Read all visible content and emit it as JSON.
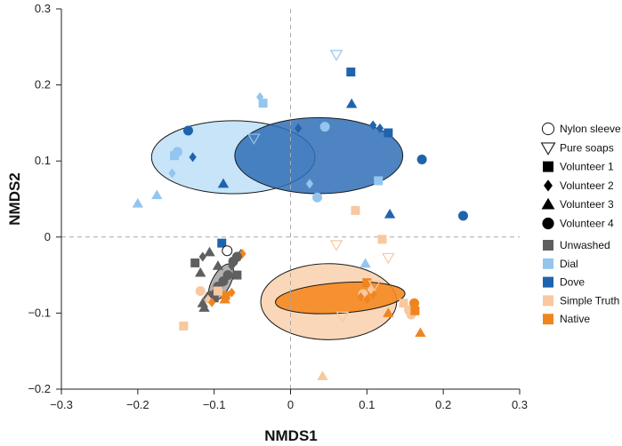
{
  "chart_data": {
    "type": "scatter",
    "xlabel": "NMDS1",
    "ylabel": "NMDS2",
    "xlim": [
      -0.3,
      0.3
    ],
    "ylim": [
      -0.2,
      0.3
    ],
    "x_ticks": [
      "−0.3",
      "−0.2",
      "−0.1",
      "0",
      "0.1",
      "0.2",
      "0.3"
    ],
    "y_ticks": [
      "−0.2",
      "−0.1",
      "0",
      "0.1",
      "0.2",
      "0.3"
    ],
    "x_tick_values": [
      -0.3,
      -0.2,
      -0.1,
      0,
      0.1,
      0.2,
      0.3
    ],
    "y_tick_values": [
      -0.2,
      -0.1,
      0,
      0.1,
      0.2,
      0.3
    ],
    "reference_lines": {
      "x": 0,
      "y": 0,
      "style": "dashed"
    },
    "grid": false,
    "legend_position": "right",
    "shape_legend": [
      {
        "label": "Nylon sleeve",
        "shape": "circle-open"
      },
      {
        "label": "Pure soaps",
        "shape": "triangle-down-open"
      },
      {
        "label": "Volunteer 1",
        "shape": "square"
      },
      {
        "label": "Volunteer 2",
        "shape": "diamond"
      },
      {
        "label": "Volunteer 3",
        "shape": "triangle"
      },
      {
        "label": "Volunteer 4",
        "shape": "circle"
      }
    ],
    "color_legend": [
      {
        "label": "Unwashed",
        "color": "#5f5f5f"
      },
      {
        "label": "Dial",
        "color": "#93c5ef"
      },
      {
        "label": "Dove",
        "color": "#1f63ad"
      },
      {
        "label": "Simple Truth",
        "color": "#f8c8a0"
      },
      {
        "label": "Native",
        "color": "#f08520"
      }
    ],
    "ellipses": [
      {
        "group": "Dial",
        "cx": -0.075,
        "cy": 0.105,
        "rx": 0.107,
        "ry": 0.048,
        "angle": 0,
        "fill": "#bddff8",
        "opacity": 0.85
      },
      {
        "group": "Dove",
        "cx": 0.037,
        "cy": 0.107,
        "rx": 0.11,
        "ry": 0.05,
        "angle": 0,
        "fill": "#2f6fb6",
        "opacity": 0.85
      },
      {
        "group": "Simple Truth",
        "cx": 0.05,
        "cy": -0.085,
        "rx": 0.089,
        "ry": 0.05,
        "angle": 0,
        "fill": "#f8d0ac",
        "opacity": 0.85
      },
      {
        "group": "Native",
        "cx": 0.065,
        "cy": -0.08,
        "rx": 0.085,
        "ry": 0.02,
        "angle": -4,
        "fill": "#f48a22",
        "opacity": 0.9
      },
      {
        "group": "Unwashed",
        "cx": -0.091,
        "cy": -0.06,
        "rx": 0.012,
        "ry": 0.027,
        "angle": 28,
        "fill": "#a8a8a8",
        "opacity": 0.9
      }
    ],
    "points": [
      {
        "x": 0.06,
        "y": 0.24,
        "group": "Dial",
        "shape": "triangle-down-open"
      },
      {
        "x": 0.079,
        "y": 0.217,
        "group": "Dove",
        "shape": "square"
      },
      {
        "x": -0.036,
        "y": 0.176,
        "group": "Dial",
        "shape": "square"
      },
      {
        "x": -0.04,
        "y": 0.184,
        "group": "Dial",
        "shape": "diamond"
      },
      {
        "x": 0.08,
        "y": 0.175,
        "group": "Dove",
        "shape": "triangle"
      },
      {
        "x": -0.134,
        "y": 0.14,
        "group": "Dove",
        "shape": "circle"
      },
      {
        "x": -0.048,
        "y": 0.13,
        "group": "Dial",
        "shape": "triangle-down-open"
      },
      {
        "x": 0.045,
        "y": 0.145,
        "group": "Dial",
        "shape": "circle"
      },
      {
        "x": 0.108,
        "y": 0.147,
        "group": "Dove",
        "shape": "diamond"
      },
      {
        "x": 0.128,
        "y": 0.137,
        "group": "Dove",
        "shape": "square"
      },
      {
        "x": 0.117,
        "y": 0.143,
        "group": "Dove",
        "shape": "diamond"
      },
      {
        "x": 0.01,
        "y": 0.143,
        "group": "Dove",
        "shape": "diamond"
      },
      {
        "x": -0.148,
        "y": 0.112,
        "group": "Dial",
        "shape": "circle"
      },
      {
        "x": -0.152,
        "y": 0.107,
        "group": "Dial",
        "shape": "square"
      },
      {
        "x": -0.128,
        "y": 0.105,
        "group": "Dove",
        "shape": "diamond"
      },
      {
        "x": -0.175,
        "y": 0.055,
        "group": "Dial",
        "shape": "triangle"
      },
      {
        "x": -0.155,
        "y": 0.084,
        "group": "Dial",
        "shape": "diamond"
      },
      {
        "x": -0.2,
        "y": 0.044,
        "group": "Dial",
        "shape": "triangle"
      },
      {
        "x": -0.088,
        "y": 0.07,
        "group": "Dove",
        "shape": "triangle"
      },
      {
        "x": 0.025,
        "y": 0.07,
        "group": "Dial",
        "shape": "diamond"
      },
      {
        "x": 0.035,
        "y": 0.052,
        "group": "Dial",
        "shape": "circle"
      },
      {
        "x": 0.115,
        "y": 0.074,
        "group": "Dial",
        "shape": "square"
      },
      {
        "x": 0.172,
        "y": 0.102,
        "group": "Dove",
        "shape": "circle"
      },
      {
        "x": 0.13,
        "y": 0.03,
        "group": "Dove",
        "shape": "triangle"
      },
      {
        "x": 0.226,
        "y": 0.028,
        "group": "Dove",
        "shape": "circle"
      },
      {
        "x": 0.085,
        "y": 0.035,
        "group": "Simple Truth",
        "shape": "square"
      },
      {
        "x": 0.06,
        "y": -0.01,
        "group": "Simple Truth",
        "shape": "triangle-down-open"
      },
      {
        "x": 0.12,
        "y": -0.003,
        "group": "Simple Truth",
        "shape": "square"
      },
      {
        "x": 0.128,
        "y": -0.027,
        "group": "Simple Truth",
        "shape": "triangle-down-open"
      },
      {
        "x": -0.09,
        "y": -0.008,
        "group": "Dove",
        "shape": "square"
      },
      {
        "x": -0.083,
        "y": -0.018,
        "group": "Unwashed",
        "shape": "circle-open"
      },
      {
        "x": -0.125,
        "y": -0.034,
        "group": "Unwashed",
        "shape": "square"
      },
      {
        "x": -0.115,
        "y": -0.026,
        "group": "Unwashed",
        "shape": "diamond"
      },
      {
        "x": -0.106,
        "y": -0.02,
        "group": "Unwashed",
        "shape": "triangle"
      },
      {
        "x": -0.065,
        "y": -0.022,
        "group": "Unwashed",
        "shape": "diamond"
      },
      {
        "x": -0.063,
        "y": -0.022,
        "group": "Native",
        "shape": "diamond"
      },
      {
        "x": -0.07,
        "y": -0.026,
        "group": "Unwashed",
        "shape": "circle"
      },
      {
        "x": -0.075,
        "y": -0.032,
        "group": "Unwashed",
        "shape": "circle"
      },
      {
        "x": -0.077,
        "y": -0.038,
        "group": "Unwashed",
        "shape": "diamond"
      },
      {
        "x": -0.095,
        "y": -0.038,
        "group": "Unwashed",
        "shape": "triangle"
      },
      {
        "x": -0.118,
        "y": -0.047,
        "group": "Unwashed",
        "shape": "triangle"
      },
      {
        "x": -0.082,
        "y": -0.05,
        "group": "Unwashed",
        "shape": "circle"
      },
      {
        "x": -0.088,
        "y": -0.058,
        "group": "Unwashed",
        "shape": "circle"
      },
      {
        "x": -0.07,
        "y": -0.05,
        "group": "Unwashed",
        "shape": "square"
      },
      {
        "x": -0.095,
        "y": -0.065,
        "group": "Unwashed",
        "shape": "circle"
      },
      {
        "x": -0.098,
        "y": -0.07,
        "group": "Unwashed",
        "shape": "triangle"
      },
      {
        "x": -0.105,
        "y": -0.077,
        "group": "Unwashed",
        "shape": "circle"
      },
      {
        "x": -0.1,
        "y": -0.08,
        "group": "Unwashed",
        "shape": "square"
      },
      {
        "x": -0.11,
        "y": -0.08,
        "group": "Unwashed",
        "shape": "diamond"
      },
      {
        "x": -0.115,
        "y": -0.087,
        "group": "Unwashed",
        "shape": "triangle"
      },
      {
        "x": -0.113,
        "y": -0.093,
        "group": "Unwashed",
        "shape": "triangle"
      },
      {
        "x": -0.085,
        "y": -0.077,
        "group": "Native",
        "shape": "square"
      },
      {
        "x": -0.077,
        "y": -0.073,
        "group": "Native",
        "shape": "diamond"
      },
      {
        "x": -0.086,
        "y": -0.082,
        "group": "Native",
        "shape": "triangle"
      },
      {
        "x": -0.108,
        "y": -0.082,
        "group": "Simple Truth",
        "shape": "diamond"
      },
      {
        "x": -0.103,
        "y": -0.086,
        "group": "Native",
        "shape": "diamond"
      },
      {
        "x": -0.118,
        "y": -0.071,
        "group": "Simple Truth",
        "shape": "circle"
      },
      {
        "x": -0.095,
        "y": -0.071,
        "group": "Simple Truth",
        "shape": "square"
      },
      {
        "x": -0.14,
        "y": -0.117,
        "group": "Simple Truth",
        "shape": "square"
      },
      {
        "x": 0.098,
        "y": -0.035,
        "group": "Dial",
        "shape": "triangle"
      },
      {
        "x": 0.1,
        "y": -0.06,
        "group": "Native",
        "shape": "square"
      },
      {
        "x": 0.102,
        "y": -0.072,
        "group": "Native",
        "shape": "diamond"
      },
      {
        "x": 0.095,
        "y": -0.075,
        "group": "Simple Truth",
        "shape": "circle"
      },
      {
        "x": 0.108,
        "y": -0.075,
        "group": "Native",
        "shape": "diamond"
      },
      {
        "x": 0.092,
        "y": -0.079,
        "group": "Native",
        "shape": "diamond"
      },
      {
        "x": 0.1,
        "y": -0.082,
        "group": "Native",
        "shape": "diamond"
      },
      {
        "x": 0.105,
        "y": -0.069,
        "group": "Simple Truth",
        "shape": "diamond"
      },
      {
        "x": 0.11,
        "y": -0.063,
        "group": "Simple Truth",
        "shape": "triangle-down-open"
      },
      {
        "x": 0.128,
        "y": -0.1,
        "group": "Native",
        "shape": "triangle"
      },
      {
        "x": 0.068,
        "y": -0.104,
        "group": "Simple Truth",
        "shape": "triangle-down-open"
      },
      {
        "x": 0.148,
        "y": -0.087,
        "group": "Simple Truth",
        "shape": "square"
      },
      {
        "x": 0.155,
        "y": -0.096,
        "group": "Simple Truth",
        "shape": "circle"
      },
      {
        "x": 0.158,
        "y": -0.102,
        "group": "Simple Truth",
        "shape": "circle"
      },
      {
        "x": 0.162,
        "y": -0.087,
        "group": "Native",
        "shape": "circle"
      },
      {
        "x": 0.163,
        "y": -0.097,
        "group": "Native",
        "shape": "square"
      },
      {
        "x": 0.17,
        "y": -0.126,
        "group": "Native",
        "shape": "triangle"
      },
      {
        "x": 0.042,
        "y": -0.183,
        "group": "Simple Truth",
        "shape": "triangle"
      }
    ]
  }
}
